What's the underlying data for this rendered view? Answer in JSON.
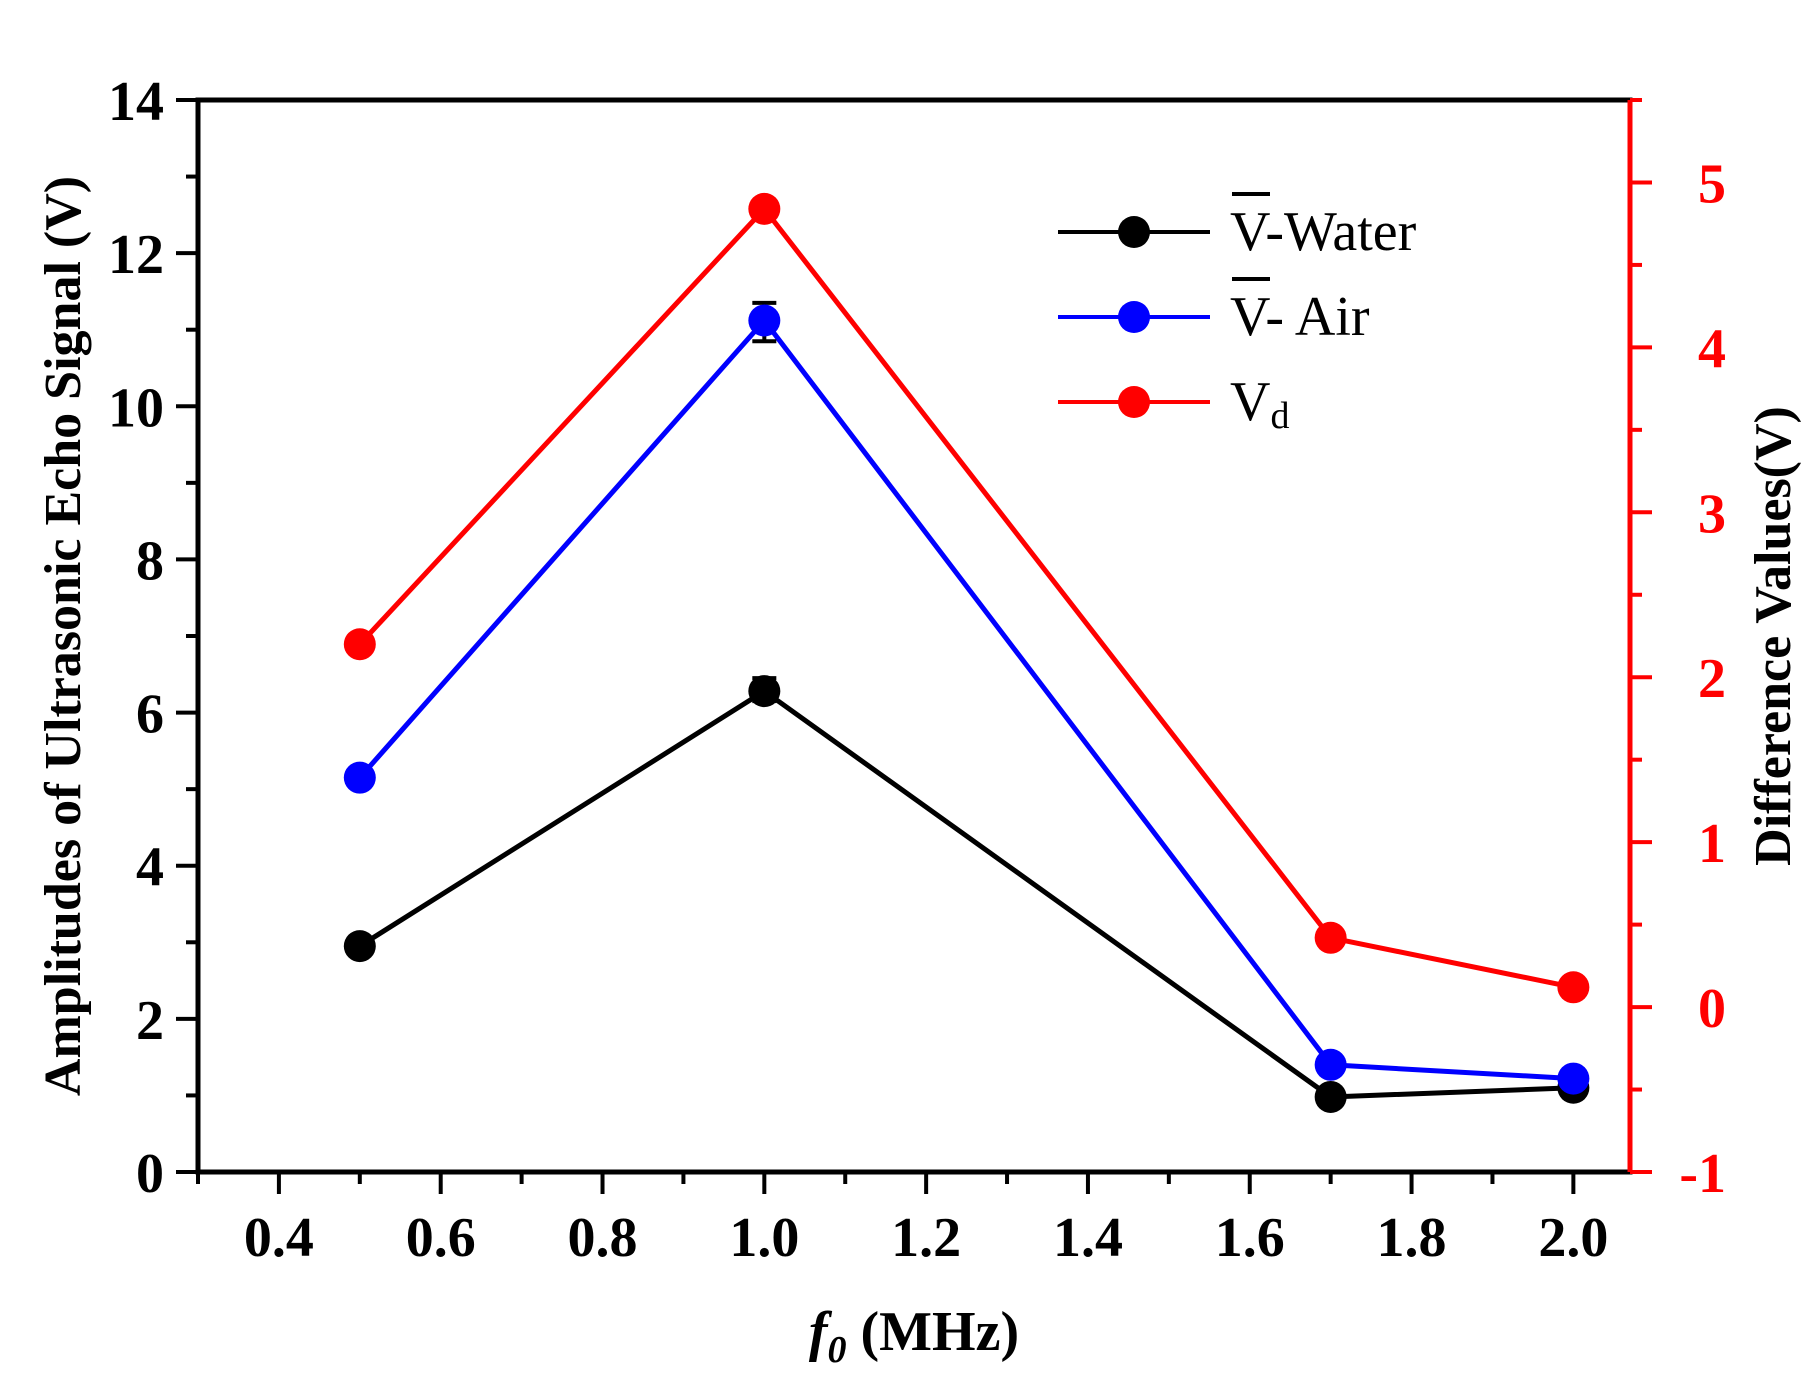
{
  "chart_data": {
    "type": "line",
    "xlabel_italic": "f",
    "xlabel_sub": "0",
    "xlabel_rest": " (MHz)",
    "ylabel_left": "Amplitudes of Ultrasonic Echo Signal (V)",
    "ylabel_right": "Difference Values(V)",
    "xlim": [
      0.3,
      2.07
    ],
    "ylim_left": [
      0,
      14
    ],
    "ylim_right": [
      -1,
      5.5
    ],
    "x_ticks": [
      "0.4",
      "0.6",
      "0.8",
      "1.0",
      "1.2",
      "1.4",
      "1.6",
      "1.8",
      "2.0"
    ],
    "y_left_ticks": [
      "0",
      "2",
      "4",
      "6",
      "8",
      "10",
      "12",
      "14"
    ],
    "y_right_ticks": [
      "-1",
      "0",
      "1",
      "2",
      "3",
      "4",
      "5"
    ],
    "x": [
      0.5,
      1.0,
      1.7,
      2.0
    ],
    "series": [
      {
        "name": "V̅-Water",
        "axis": "left",
        "color": "#000000",
        "values": [
          2.95,
          6.28,
          0.98,
          1.1
        ],
        "error_low": [
          2.9,
          6.15,
          0.92,
          1.05
        ],
        "error_high": [
          3.0,
          6.45,
          1.05,
          1.15
        ]
      },
      {
        "name": "V̅- Air",
        "axis": "left",
        "color": "#0000ff",
        "values": [
          5.15,
          11.12,
          1.4,
          1.22
        ],
        "error_low": [
          5.1,
          10.85,
          1.35,
          1.18
        ],
        "error_high": [
          5.2,
          11.35,
          1.45,
          1.26
        ]
      },
      {
        "name": "V",
        "name_sub": "d",
        "axis": "right",
        "color": "#ff0000",
        "values": [
          2.2,
          4.84,
          0.42,
          0.12
        ]
      }
    ],
    "legend_position": "top-right",
    "legend": {
      "water_bar": "V",
      "water_rest": "-Water",
      "air_bar": "V",
      "air_rest": "- Air",
      "vd_main": "V",
      "vd_sub": "d"
    }
  }
}
